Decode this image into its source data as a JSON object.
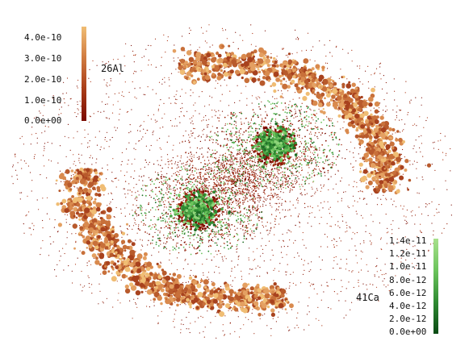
{
  "al26_colorbar": {
    "label": "26Al",
    "ticks": [
      "4.0e-10",
      "3.0e-10",
      "2.0e-10",
      "1.0e-10",
      "0.0e+00"
    ],
    "colors": [
      "#7a0a00",
      "#a83c18",
      "#d07a40",
      "#f0bd74"
    ]
  },
  "ca41_colorbar": {
    "label": "41Ca",
    "ticks": [
      "1.4e-11",
      "1.2e-11",
      "1.0e-11",
      "8.0e-12",
      "6.0e-12",
      "4.0e-12",
      "2.0e-12",
      "0.0e+00"
    ],
    "colors": [
      "#0a4a14",
      "#2f8a32",
      "#6cc45c",
      "#a8e08c"
    ]
  }
}
